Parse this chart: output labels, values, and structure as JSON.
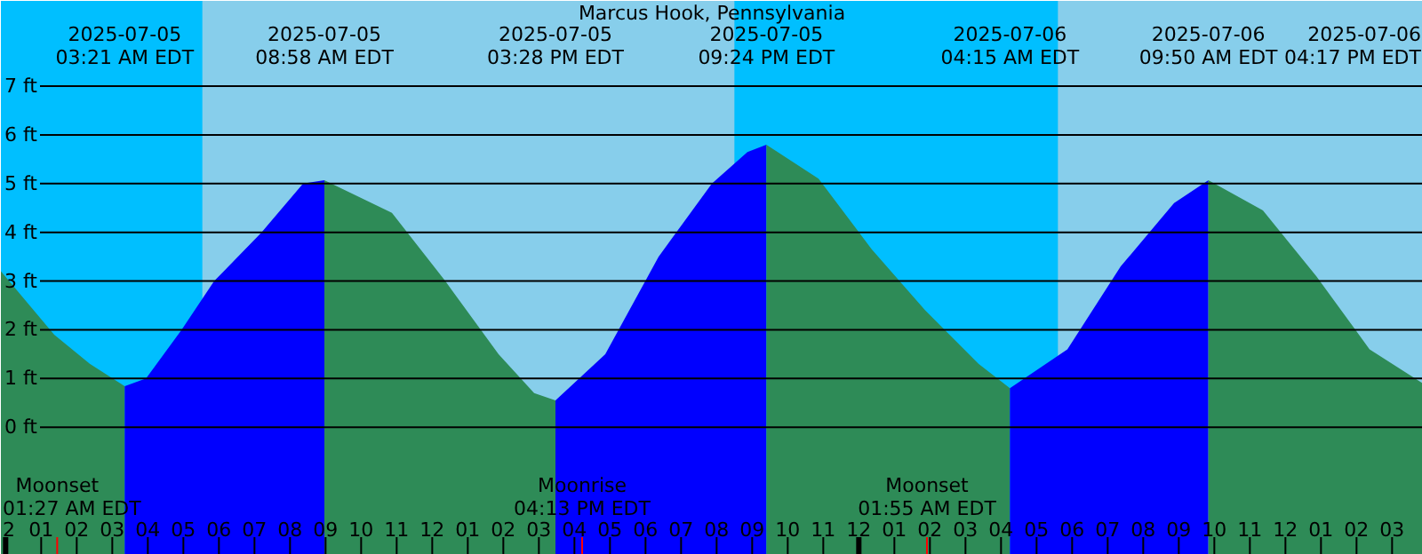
{
  "chart_data": {
    "type": "area",
    "title": "Marcus Hook, Pennsylvania",
    "xlim": [
      "2025-07-04T23:52",
      "2025-07-06T15:52"
    ],
    "ylim": [
      -2.62,
      8.75
    ],
    "xticks": [
      {
        "value": "2025-07-05T00:00",
        "label": "2"
      },
      {
        "value": "2025-07-05T01:00",
        "label": "01"
      },
      {
        "value": "2025-07-05T01:27",
        "label": null
      },
      {
        "value": "2025-07-05T02:00",
        "label": "02"
      },
      {
        "value": "2025-07-05T03:00",
        "label": "03"
      },
      {
        "value": "2025-07-05T04:00",
        "label": "04"
      },
      {
        "value": "2025-07-05T05:00",
        "label": "05"
      },
      {
        "value": "2025-07-05T06:00",
        "label": "06"
      },
      {
        "value": "2025-07-05T07:00",
        "label": "07"
      },
      {
        "value": "2025-07-05T08:00",
        "label": "08"
      },
      {
        "value": "2025-07-05T09:00",
        "label": "09"
      },
      {
        "value": "2025-07-05T10:00",
        "label": "10"
      },
      {
        "value": "2025-07-05T11:00",
        "label": "11"
      },
      {
        "value": "2025-07-05T12:00",
        "label": "12"
      },
      {
        "value": "2025-07-05T13:00",
        "label": "01"
      },
      {
        "value": "2025-07-05T14:00",
        "label": "02"
      },
      {
        "value": "2025-07-05T15:00",
        "label": "03"
      },
      {
        "value": "2025-07-05T16:00",
        "label": "04"
      },
      {
        "value": "2025-07-05T16:13",
        "label": null
      },
      {
        "value": "2025-07-05T17:00",
        "label": "05"
      },
      {
        "value": "2025-07-05T18:00",
        "label": "06"
      },
      {
        "value": "2025-07-05T19:00",
        "label": "07"
      },
      {
        "value": "2025-07-05T20:00",
        "label": "08"
      },
      {
        "value": "2025-07-05T21:00",
        "label": "09"
      },
      {
        "value": "2025-07-05T22:00",
        "label": "10"
      },
      {
        "value": "2025-07-05T23:00",
        "label": "11"
      },
      {
        "value": "2025-07-06T00:00",
        "label": "12"
      },
      {
        "value": "2025-07-06T01:00",
        "label": "01"
      },
      {
        "value": "2025-07-06T01:55",
        "label": null
      },
      {
        "value": "2025-07-06T02:00",
        "label": "02"
      },
      {
        "value": "2025-07-06T03:00",
        "label": "03"
      },
      {
        "value": "2025-07-06T04:00",
        "label": "04"
      },
      {
        "value": "2025-07-06T05:00",
        "label": "05"
      },
      {
        "value": "2025-07-06T06:00",
        "label": "06"
      },
      {
        "value": "2025-07-06T07:00",
        "label": "07"
      },
      {
        "value": "2025-07-06T08:00",
        "label": "08"
      },
      {
        "value": "2025-07-06T09:00",
        "label": "09"
      },
      {
        "value": "2025-07-06T10:00",
        "label": "10"
      },
      {
        "value": "2025-07-06T11:00",
        "label": "11"
      },
      {
        "value": "2025-07-06T12:00",
        "label": "12"
      },
      {
        "value": "2025-07-06T13:00",
        "label": "01"
      },
      {
        "value": "2025-07-06T14:00",
        "label": "02"
      },
      {
        "value": "2025-07-06T15:00",
        "label": "03"
      }
    ],
    "yticks": [
      {
        "value": 0,
        "label": "0 ft"
      },
      {
        "value": 1,
        "label": "1 ft"
      },
      {
        "value": 2,
        "label": "2 ft"
      },
      {
        "value": 3,
        "label": "3 ft"
      },
      {
        "value": 4,
        "label": "4 ft"
      },
      {
        "value": 5,
        "label": "5 ft"
      },
      {
        "value": 6,
        "label": "6 ft"
      },
      {
        "value": 7,
        "label": "7 ft"
      }
    ],
    "grid": "y",
    "bands": [
      {
        "axis": "x",
        "from": "2025-07-04T23:52",
        "to": "2025-07-05T05:32",
        "color": "#00bfff"
      },
      {
        "axis": "x",
        "from": "2025-07-05T20:30",
        "to": "2025-07-06T05:36",
        "color": "#00bfff"
      }
    ],
    "series": [
      {
        "color": "#2e8b57",
        "x": [
          "2025-07-04T23:52",
          "2025-07-05T01:22",
          "2025-07-05T02:22",
          "2025-07-05T03:21"
        ],
        "values": [
          3.2,
          1.9,
          1.3,
          0.84
        ]
      },
      {
        "color": "#0000ff",
        "x": [
          "2025-07-05T03:21",
          "2025-07-05T03:57",
          "2025-07-05T04:57",
          "2025-07-05T05:52",
          "2025-07-05T07:12",
          "2025-07-05T08:22",
          "2025-07-05T08:58"
        ],
        "values": [
          0.84,
          1.0,
          2.0,
          3.0,
          4.0,
          5.0,
          5.07
        ]
      },
      {
        "color": "#2e8b57",
        "x": [
          "2025-07-05T08:58",
          "2025-07-05T10:52",
          "2025-07-05T12:22",
          "2025-07-05T13:52",
          "2025-07-05T14:52",
          "2025-07-05T15:28"
        ],
        "values": [
          5.07,
          4.4,
          3.0,
          1.5,
          0.7,
          0.55
        ]
      },
      {
        "color": "#0000ff",
        "x": [
          "2025-07-05T15:28",
          "2025-07-05T16:52",
          "2025-07-05T18:22",
          "2025-07-05T19:52",
          "2025-07-05T20:52",
          "2025-07-05T21:24"
        ],
        "values": [
          0.55,
          1.5,
          3.5,
          5.0,
          5.65,
          5.8
        ]
      },
      {
        "color": "#2e8b57",
        "x": [
          "2025-07-05T21:24",
          "2025-07-05T22:52",
          "2025-07-06T00:22",
          "2025-07-06T01:52",
          "2025-07-06T03:22",
          "2025-07-06T04:15"
        ],
        "values": [
          5.8,
          5.1,
          3.65,
          2.4,
          1.3,
          0.8
        ]
      },
      {
        "color": "#0000ff",
        "x": [
          "2025-07-06T04:15",
          "2025-07-06T05:52",
          "2025-07-06T07:22",
          "2025-07-06T08:52",
          "2025-07-06T09:50"
        ],
        "values": [
          0.8,
          1.6,
          3.3,
          4.6,
          5.07
        ]
      },
      {
        "color": "#2e8b57",
        "x": [
          "2025-07-06T09:50",
          "2025-07-06T11:22",
          "2025-07-06T12:52",
          "2025-07-06T14:22",
          "2025-07-06T15:52"
        ],
        "values": [
          5.07,
          4.45,
          3.1,
          1.6,
          0.9
        ]
      }
    ],
    "annotations": [
      "2025-07-05\n03:21 AM EDT",
      "2025-07-05\n08:58 AM EDT",
      "2025-07-05\n03:28 PM EDT",
      "2025-07-05\n09:24 PM EDT",
      "2025-07-06\n04:15 AM EDT",
      "2025-07-06\n09:50 AM EDT",
      "2025-07-06\n04:17 PM EDT",
      "Moonset\n01:27 AM EDT",
      "Moonrise\n04:13 PM EDT",
      "Moonset\n01:55 AM EDT"
    ]
  }
}
